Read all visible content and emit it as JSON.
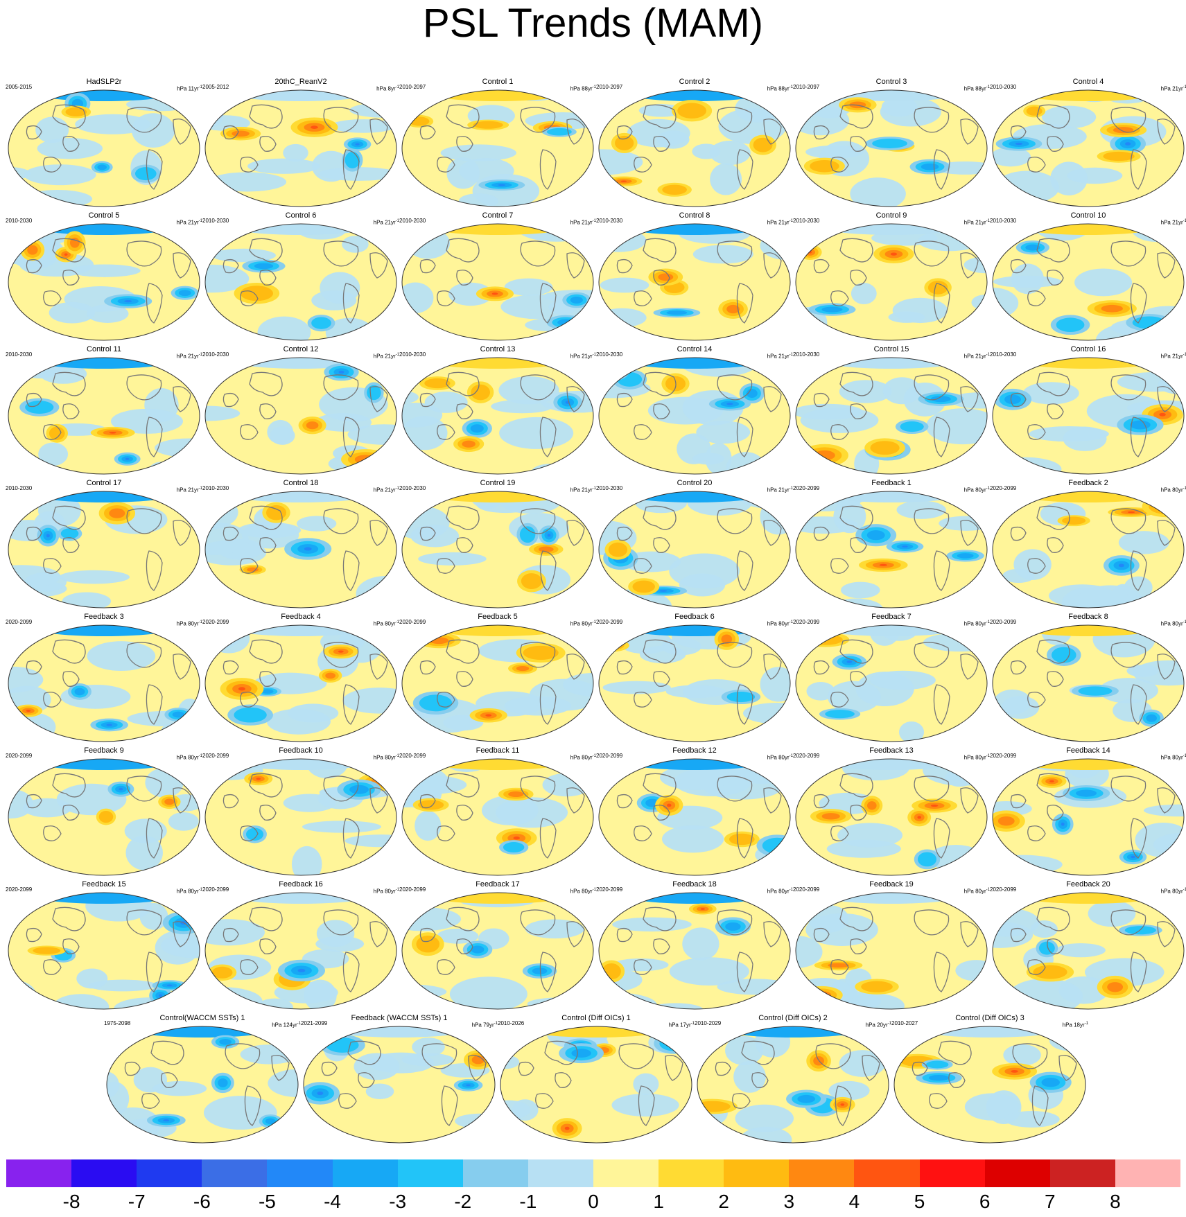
{
  "title": "PSL Trends (MAM)",
  "units_prefix": "hPa",
  "units_suffix": "yr",
  "units_exponent": "-1",
  "chart_data": {
    "type": "heatmap",
    "title": "PSL Trends (MAM)",
    "projection": "global map (Robinson-like ellipse), Pacific-centered",
    "panels": [
      {
        "name": "HadSLP2r",
        "period": "2005-2015",
        "units_value": "11"
      },
      {
        "name": "20thC_ReanV2",
        "period": "2005-2012",
        "units_value": "8"
      },
      {
        "name": "Control 1",
        "period": "2010-2097",
        "units_value": "88"
      },
      {
        "name": "Control 2",
        "period": "2010-2097",
        "units_value": "88"
      },
      {
        "name": "Control 3",
        "period": "2010-2097",
        "units_value": "88"
      },
      {
        "name": "Control 4",
        "period": "2010-2030",
        "units_value": "21"
      },
      {
        "name": "Control 5",
        "period": "2010-2030",
        "units_value": "21"
      },
      {
        "name": "Control 6",
        "period": "2010-2030",
        "units_value": "21"
      },
      {
        "name": "Control 7",
        "period": "2010-2030",
        "units_value": "21"
      },
      {
        "name": "Control 8",
        "period": "2010-2030",
        "units_value": "21"
      },
      {
        "name": "Control 9",
        "period": "2010-2030",
        "units_value": "21"
      },
      {
        "name": "Control 10",
        "period": "2010-2030",
        "units_value": "21"
      },
      {
        "name": "Control 11",
        "period": "2010-2030",
        "units_value": "21"
      },
      {
        "name": "Control 12",
        "period": "2010-2030",
        "units_value": "21"
      },
      {
        "name": "Control 13",
        "period": "2010-2030",
        "units_value": "21"
      },
      {
        "name": "Control 14",
        "period": "2010-2030",
        "units_value": "21"
      },
      {
        "name": "Control 15",
        "period": "2010-2030",
        "units_value": "21"
      },
      {
        "name": "Control 16",
        "period": "2010-2030",
        "units_value": "21"
      },
      {
        "name": "Control 17",
        "period": "2010-2030",
        "units_value": "21"
      },
      {
        "name": "Control 18",
        "period": "2010-2030",
        "units_value": "21"
      },
      {
        "name": "Control 19",
        "period": "2010-2030",
        "units_value": "21"
      },
      {
        "name": "Control 20",
        "period": "2010-2030",
        "units_value": "21"
      },
      {
        "name": "Feedback 1",
        "period": "2020-2099",
        "units_value": "80"
      },
      {
        "name": "Feedback 2",
        "period": "2020-2099",
        "units_value": "80"
      },
      {
        "name": "Feedback 3",
        "period": "2020-2099",
        "units_value": "80"
      },
      {
        "name": "Feedback 4",
        "period": "2020-2099",
        "units_value": "80"
      },
      {
        "name": "Feedback 5",
        "period": "2020-2099",
        "units_value": "80"
      },
      {
        "name": "Feedback 6",
        "period": "2020-2099",
        "units_value": "80"
      },
      {
        "name": "Feedback 7",
        "period": "2020-2099",
        "units_value": "80"
      },
      {
        "name": "Feedback 8",
        "period": "2020-2099",
        "units_value": "80"
      },
      {
        "name": "Feedback 9",
        "period": "2020-2099",
        "units_value": "80"
      },
      {
        "name": "Feedback 10",
        "period": "2020-2099",
        "units_value": "80"
      },
      {
        "name": "Feedback 11",
        "period": "2020-2099",
        "units_value": "80"
      },
      {
        "name": "Feedback 12",
        "period": "2020-2099",
        "units_value": "80"
      },
      {
        "name": "Feedback 13",
        "period": "2020-2099",
        "units_value": "80"
      },
      {
        "name": "Feedback 14",
        "period": "2020-2099",
        "units_value": "80"
      },
      {
        "name": "Feedback 15",
        "period": "2020-2099",
        "units_value": "80"
      },
      {
        "name": "Feedback 16",
        "period": "2020-2099",
        "units_value": "80"
      },
      {
        "name": "Feedback 17",
        "period": "2020-2099",
        "units_value": "80"
      },
      {
        "name": "Feedback 18",
        "period": "2020-2099",
        "units_value": "80"
      },
      {
        "name": "Feedback 19",
        "period": "2020-2099",
        "units_value": "80"
      },
      {
        "name": "Feedback 20",
        "period": "2020-2099",
        "units_value": "80"
      },
      {
        "name": "Control(WACCM SSTs) 1",
        "period": "1975-2098",
        "units_value": "124"
      },
      {
        "name": "Feedback (WACCM SSTs) 1",
        "period": "2021-2099",
        "units_value": "79"
      },
      {
        "name": "Control (Diff OICs) 1",
        "period": "2010-2026",
        "units_value": "17"
      },
      {
        "name": "Control (Diff OICs) 2",
        "period": "2010-2029",
        "units_value": "20"
      },
      {
        "name": "Control (Diff OICs) 3",
        "period": "2010-2027",
        "units_value": "18"
      }
    ],
    "colorbar": {
      "levels": [
        -8,
        -7,
        -6,
        -5,
        -4,
        -3,
        -2,
        -1,
        0,
        1,
        2,
        3,
        4,
        5,
        6,
        7,
        8
      ],
      "tick_labels": [
        "-8",
        "-7",
        "-6",
        "-5",
        "-4",
        "-3",
        "-2",
        "-1",
        "0",
        "1",
        "2",
        "3",
        "4",
        "5",
        "6",
        "7",
        "8"
      ],
      "colors": [
        "#8822ee",
        "#2a0cf2",
        "#1f3af0",
        "#3b6ee6",
        "#2288f8",
        "#17a8f5",
        "#22c4f8",
        "#86cdee",
        "#b7e0f3",
        "#fff599",
        "#ffdb33",
        "#ffbb11",
        "#ff8811",
        "#ff5511",
        "#ff1111",
        "#dd0000",
        "#cc2222",
        "#ffb3b3"
      ]
    }
  }
}
